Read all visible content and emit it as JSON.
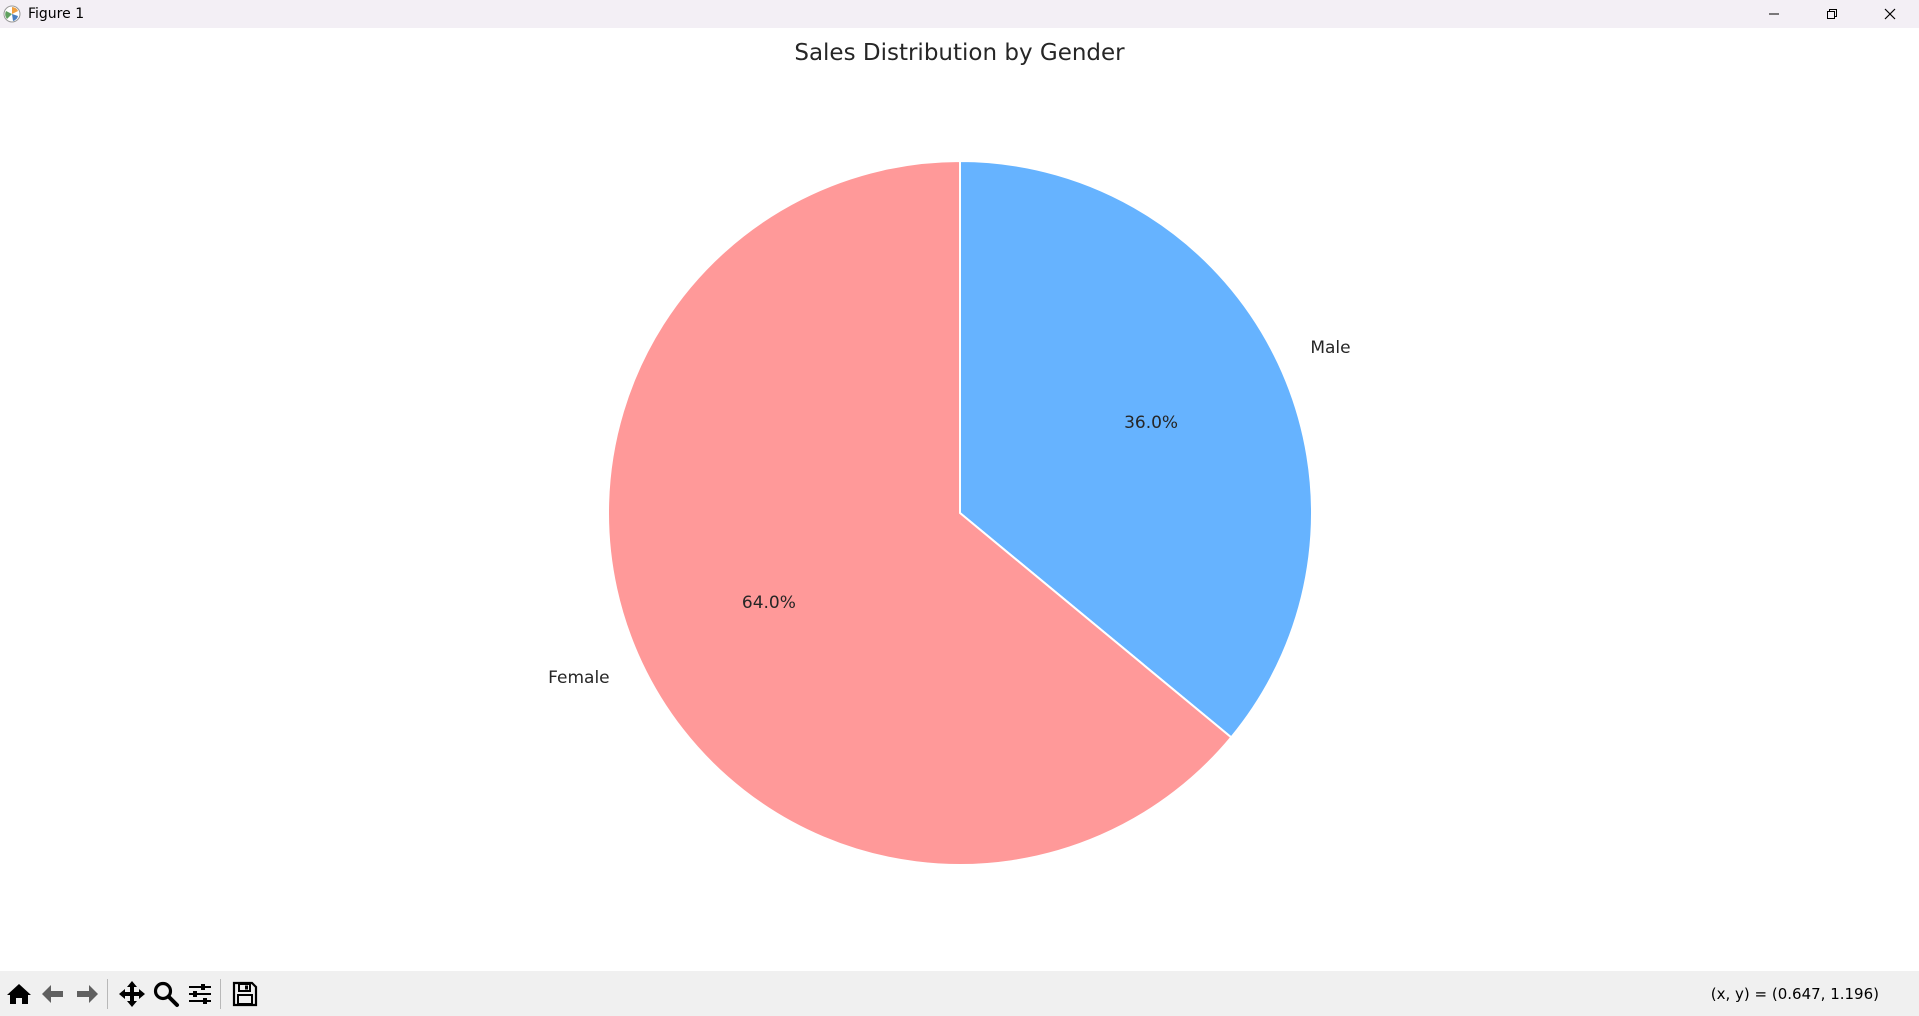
{
  "window": {
    "title": "Figure 1"
  },
  "icons": {
    "app": "matplotlib-logo-icon",
    "minimize": "minimize-icon",
    "restore": "restore-icon",
    "close": "close-icon",
    "home": "home-icon",
    "back": "arrow-left-icon",
    "forward": "arrow-right-icon",
    "pan": "move-arrows-icon",
    "zoom": "magnifier-icon",
    "configure": "sliders-icon",
    "save": "floppy-disk-icon"
  },
  "status": {
    "coords": "(x, y) = (0.647, 1.196)"
  },
  "chart_data": {
    "type": "pie",
    "title": "Sales Distribution by Gender",
    "slices": [
      {
        "label": "Male",
        "value": 36.0,
        "pct_label": "36.0%",
        "color": "#66b3ff"
      },
      {
        "label": "Female",
        "value": 64.0,
        "pct_label": "64.0%",
        "color": "#ff9999"
      }
    ],
    "start_angle": 90,
    "direction": "clockwise",
    "edge_color": "#ffffff"
  }
}
